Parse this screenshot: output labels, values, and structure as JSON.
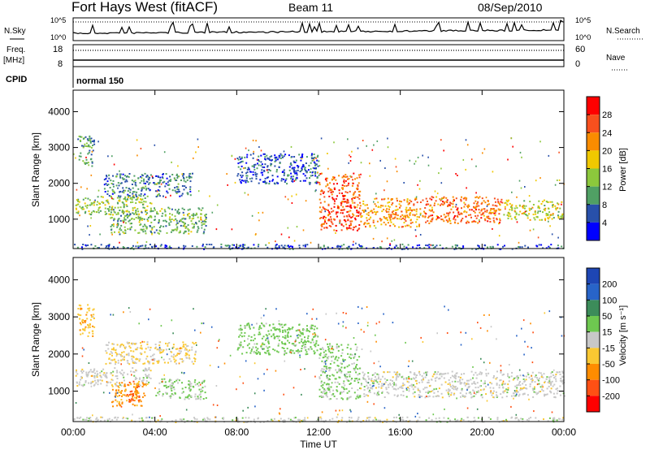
{
  "header": {
    "station": "Fort Hays West (fitACF)",
    "beam": "Beam 11",
    "date": "08/Sep/2010"
  },
  "noise_panel": {
    "left_label": "N.Sky",
    "right_label": "N.Search",
    "left_ticks": [
      "10^5",
      "10^0"
    ],
    "right_ticks": [
      "10^5",
      "10^0"
    ]
  },
  "freq_panel": {
    "left_label_1": "Freq.",
    "left_label_2": "[MHz]",
    "right_label": "Nave",
    "left_ticks": [
      "18",
      "8"
    ],
    "right_ticks": [
      "60",
      "0"
    ]
  },
  "cpid_panel": {
    "label": "CPID",
    "mode": "normal 150"
  },
  "colorbar_power": {
    "label": "Power [dB]",
    "ticks": [
      "28",
      "24",
      "20",
      "16",
      "12",
      "8",
      "4"
    ],
    "colors": [
      "#ff0000",
      "#f8501e",
      "#fa8c00",
      "#f0c800",
      "#8cc83c",
      "#50a064",
      "#2850aa",
      "#0000ff"
    ]
  },
  "colorbar_velocity": {
    "label": "Velocity [m s⁻¹]",
    "ticks": [
      "200",
      "100",
      "50",
      "15",
      "-15",
      "-50",
      "-100",
      "-200"
    ],
    "colors": [
      "#1e46b4",
      "#2864c8",
      "#3c8c5a",
      "#6ec850",
      "#c8c8c8",
      "#fac832",
      "#ff8c00",
      "#ff5014",
      "#ff0000"
    ]
  },
  "chart_data": [
    {
      "type": "heatmap",
      "title": "Fort Hays West (fitACF)",
      "panel": "power",
      "xlabel": "Time UT",
      "ylabel": "Slant Range [km]",
      "x_ticks": [
        "00:00",
        "04:00",
        "08:00",
        "12:00",
        "16:00",
        "20:00",
        "00:00"
      ],
      "y_ticks": [
        "1000",
        "2000",
        "3000",
        "4000"
      ],
      "xlim_hours": [
        0,
        24
      ],
      "ylim": [
        180,
        4600
      ],
      "regions": [
        {
          "t0": 0.1,
          "t1": 3.8,
          "r0": 1150,
          "r1": 1650,
          "value": 14
        },
        {
          "t0": 1.5,
          "t1": 5.8,
          "r0": 1650,
          "r1": 2300,
          "value": 8
        },
        {
          "t0": 0.2,
          "t1": 1.0,
          "r0": 2500,
          "r1": 3350,
          "value": 10
        },
        {
          "t0": 1.8,
          "t1": 6.5,
          "r0": 600,
          "r1": 1350,
          "value": 12
        },
        {
          "t0": 8.0,
          "t1": 12.0,
          "r0": 2000,
          "r1": 2850,
          "value": 6
        },
        {
          "t0": 12.0,
          "t1": 14.0,
          "r0": 700,
          "r1": 2300,
          "value": 26
        },
        {
          "t0": 14.0,
          "t1": 17.0,
          "r0": 800,
          "r1": 1600,
          "value": 22
        },
        {
          "t0": 17.0,
          "t1": 21.0,
          "r0": 900,
          "r1": 1650,
          "value": 24
        },
        {
          "t0": 21.0,
          "t1": 24.0,
          "r0": 1000,
          "r1": 1550,
          "value": 16
        },
        {
          "t0": 0.0,
          "t1": 24.0,
          "r0": 180,
          "r1": 320,
          "value": 6
        }
      ]
    },
    {
      "type": "heatmap",
      "panel": "velocity",
      "xlabel": "Time UT",
      "ylabel": "Slant Range [km]",
      "x_ticks": [
        "00:00",
        "04:00",
        "08:00",
        "12:00",
        "16:00",
        "20:00",
        "00:00"
      ],
      "y_ticks": [
        "1000",
        "2000",
        "3000",
        "4000"
      ],
      "xlim_hours": [
        0,
        24
      ],
      "ylim": [
        180,
        4600
      ],
      "regions": [
        {
          "t0": 0.1,
          "t1": 3.8,
          "r0": 1150,
          "r1": 1650,
          "value": 0
        },
        {
          "t0": 1.5,
          "t1": 6.0,
          "r0": 1750,
          "r1": 2350,
          "value": -20
        },
        {
          "t0": 0.2,
          "t1": 1.0,
          "r0": 2500,
          "r1": 3350,
          "value": -40
        },
        {
          "t0": 1.8,
          "t1": 3.5,
          "r0": 600,
          "r1": 1250,
          "value": -60
        },
        {
          "t0": 2.6,
          "t1": 3.2,
          "r0": 700,
          "r1": 1300,
          "value": -110
        },
        {
          "t0": 4.0,
          "t1": 6.5,
          "r0": 800,
          "r1": 1350,
          "value": 20
        },
        {
          "t0": 8.0,
          "t1": 12.0,
          "r0": 2000,
          "r1": 2850,
          "value": 30
        },
        {
          "t0": 12.0,
          "t1": 14.0,
          "r0": 800,
          "r1": 2300,
          "value": 20
        },
        {
          "t0": 14.0,
          "t1": 24.0,
          "r0": 850,
          "r1": 1550,
          "value": 0
        },
        {
          "t0": 0.0,
          "t1": 24.0,
          "r0": 180,
          "r1": 320,
          "value": 0
        }
      ]
    }
  ]
}
